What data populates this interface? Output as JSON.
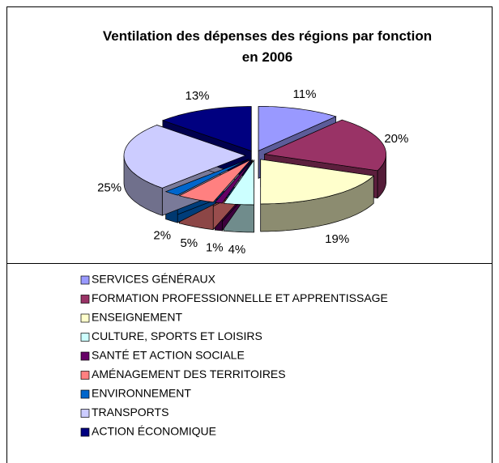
{
  "chart_data": {
    "type": "pie3d",
    "title": "Ventilation des dépenses des régions par fonction en 2006",
    "categories": [
      "SERVICES GÉNÉRAUX",
      "FORMATION PROFESSIONNELLE ET APPRENTISSAGE",
      "ENSEIGNEMENT",
      "CULTURE, SPORTS ET LOISIRS",
      "SANTÉ  ET ACTION SOCIALE",
      "AMÉNAGEMENT DES TERRITOIRES",
      "ENVIRONNEMENT",
      "TRANSPORTS",
      "ACTION ÉCONOMIQUE"
    ],
    "values": [
      11,
      20,
      19,
      4,
      1,
      5,
      2,
      25,
      13
    ],
    "value_labels": [
      "11%",
      "20%",
      "19%",
      "4%",
      "1%",
      "5%",
      "2%",
      "25%",
      "13%"
    ],
    "colors": [
      "#9999ff",
      "#993366",
      "#ffffcc",
      "#ccffff",
      "#660066",
      "#ff8080",
      "#0066cc",
      "#ccccff",
      "#000080"
    ],
    "legend": "bottom"
  }
}
